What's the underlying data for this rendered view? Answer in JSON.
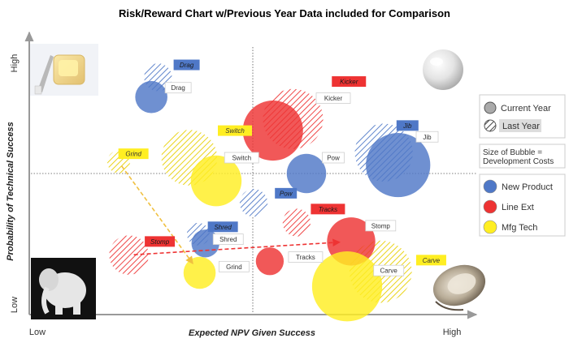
{
  "chart_data": {
    "type": "scatter",
    "subtype": "bubble",
    "title": "Risk/Reward Chart w/Previous Year Data included for Comparison",
    "xlabel": "Expected NPV Given Success",
    "ylabel": "Probability of Technical Success",
    "x_low_label": "Low",
    "x_high_label": "High",
    "y_low_label": "Low",
    "y_high_label": "High",
    "xlim": [
      0,
      100
    ],
    "ylim": [
      0,
      100
    ],
    "reference_lines": {
      "x": 50,
      "y": 50
    },
    "colors": {
      "New Product": "#4f78c7",
      "Line Ext": "#ee3333",
      "Mfg Tech": "#ffee22"
    },
    "legend": {
      "period_items": [
        "Current Year",
        "Last Year"
      ],
      "size_note_line1": "Size of Bubble =",
      "size_note_line2": "Development Costs",
      "category_items": [
        "New Product",
        "Line Ext",
        "Mfg Tech"
      ]
    },
    "points": [
      {
        "name": "Drag",
        "category": "New Product",
        "period": "Last Year",
        "x": 28.8,
        "y": 84.1,
        "size": 3
      },
      {
        "name": "Drag",
        "category": "New Product",
        "period": "Current Year",
        "x": 27.3,
        "y": 77.1,
        "size": 4
      },
      {
        "name": "Kicker",
        "category": "Line Ext",
        "period": "Last Year",
        "x": 59.0,
        "y": 69.3,
        "size": 14
      },
      {
        "name": "Kicker",
        "category": "Line Ext",
        "period": "Current Year",
        "x": 54.5,
        "y": 65.2,
        "size": 14
      },
      {
        "name": "Jib",
        "category": "New Product",
        "period": "Last Year",
        "x": 79.3,
        "y": 57.4,
        "size": 13
      },
      {
        "name": "Jib",
        "category": "New Product",
        "period": "Current Year",
        "x": 82.5,
        "y": 53.0,
        "size": 16
      },
      {
        "name": "Switch",
        "category": "Mfg Tech",
        "period": "Last Year",
        "x": 35.8,
        "y": 55.6,
        "size": 12
      },
      {
        "name": "Switch",
        "category": "Mfg Tech",
        "period": "Current Year",
        "x": 41.8,
        "y": 47.4,
        "size": 10
      },
      {
        "name": "Grind",
        "category": "Mfg Tech",
        "period": "Last Year",
        "x": 20.0,
        "y": 54.1,
        "size": 2
      },
      {
        "name": "Grind",
        "category": "Mfg Tech",
        "period": "Current Year",
        "x": 38.1,
        "y": 14.8,
        "size": 4
      },
      {
        "name": "Pow",
        "category": "New Product",
        "period": "Last Year",
        "x": 50.2,
        "y": 39.6,
        "size": 3
      },
      {
        "name": "Pow",
        "category": "New Product",
        "period": "Current Year",
        "x": 62.0,
        "y": 50.0,
        "size": 6
      },
      {
        "name": "Tracks",
        "category": "Line Ext",
        "period": "Last Year",
        "x": 59.8,
        "y": 32.6,
        "size": 3
      },
      {
        "name": "Tracks",
        "category": "Line Ext",
        "period": "Current Year",
        "x": 53.8,
        "y": 18.9,
        "size": 3
      },
      {
        "name": "Shred",
        "category": "New Product",
        "period": "Last Year",
        "x": 37.8,
        "y": 28.5,
        "size": 2
      },
      {
        "name": "Shred",
        "category": "New Product",
        "period": "Current Year",
        "x": 39.4,
        "y": 25.2,
        "size": 3
      },
      {
        "name": "Stomp",
        "category": "Line Ext",
        "period": "Last Year",
        "x": 22.3,
        "y": 21.1,
        "size": 6
      },
      {
        "name": "Stomp",
        "category": "Line Ext",
        "period": "Current Year",
        "x": 72.0,
        "y": 25.9,
        "size": 9
      },
      {
        "name": "Carve",
        "category": "Mfg Tech",
        "period": "Last Year",
        "x": 78.6,
        "y": 15.2,
        "size": 15
      },
      {
        "name": "Carve",
        "category": "Mfg Tech",
        "period": "Current Year",
        "x": 71.1,
        "y": 10.0,
        "size": 19
      }
    ],
    "arrows": [
      {
        "name": "Grind",
        "category": "Mfg Tech",
        "from": [
          20.0,
          54.1
        ],
        "to": [
          38.1,
          14.8
        ]
      },
      {
        "name": "Stomp",
        "category": "Line Ext",
        "from": [
          22.3,
          21.1
        ],
        "to": [
          72.0,
          25.9
        ]
      }
    ],
    "tags": [
      {
        "text": "Drag",
        "category": "New Product",
        "period": "Last Year",
        "x": 35.2,
        "y": 88.5
      },
      {
        "text": "Drag",
        "category": "New Product",
        "period": "Current Year",
        "x": 33.3,
        "y": 80.4
      },
      {
        "text": "Kicker",
        "category": "Line Ext",
        "period": "Last Year",
        "x": 71.5,
        "y": 82.6
      },
      {
        "text": "Kicker",
        "category": "Line Ext",
        "period": "Current Year",
        "x": 68.0,
        "y": 76.7
      },
      {
        "text": "Jib",
        "category": "New Product",
        "period": "Last Year",
        "x": 84.6,
        "y": 67.0
      },
      {
        "text": "Jib",
        "category": "New Product",
        "period": "Current Year",
        "x": 89.0,
        "y": 63.0
      },
      {
        "text": "Switch",
        "category": "Mfg Tech",
        "period": "Last Year",
        "x": 46.0,
        "y": 65.2
      },
      {
        "text": "Switch",
        "category": "Mfg Tech",
        "period": "Current Year",
        "x": 47.5,
        "y": 55.6
      },
      {
        "text": "Grind",
        "category": "Mfg Tech",
        "period": "Last Year",
        "x": 23.3,
        "y": 57.0
      },
      {
        "text": "Grind",
        "category": "Mfg Tech",
        "period": "Current Year",
        "x": 45.8,
        "y": 17.0
      },
      {
        "text": "Pow",
        "category": "New Product",
        "period": "Last Year",
        "x": 57.4,
        "y": 43.0
      },
      {
        "text": "Pow",
        "category": "New Product",
        "period": "Current Year",
        "x": 68.0,
        "y": 55.6
      },
      {
        "text": "Tracks",
        "category": "Line Ext",
        "period": "Last Year",
        "x": 66.8,
        "y": 37.4
      },
      {
        "text": "Tracks",
        "category": "Line Ext",
        "period": "Current Year",
        "x": 61.8,
        "y": 20.4
      },
      {
        "text": "Shred",
        "category": "New Product",
        "period": "Last Year",
        "x": 43.3,
        "y": 31.1
      },
      {
        "text": "Shred",
        "category": "New Product",
        "period": "Current Year",
        "x": 44.5,
        "y": 26.7
      },
      {
        "text": "Stomp",
        "category": "Line Ext",
        "period": "Last Year",
        "x": 29.2,
        "y": 25.9
      },
      {
        "text": "Stomp",
        "category": "Line Ext",
        "period": "Current Year",
        "x": 78.6,
        "y": 31.5
      },
      {
        "text": "Carve",
        "category": "Mfg Tech",
        "period": "Last Year",
        "x": 89.9,
        "y": 19.3
      },
      {
        "text": "Carve",
        "category": "Mfg Tech",
        "period": "Current Year",
        "x": 80.4,
        "y": 15.6
      }
    ],
    "decorative_images": [
      {
        "corner": "top-left",
        "icon": "butter-toast-icon"
      },
      {
        "corner": "top-right",
        "icon": "pearl-icon"
      },
      {
        "corner": "bottom-left",
        "icon": "white-elephant-icon"
      },
      {
        "corner": "bottom-right",
        "icon": "oyster-icon"
      }
    ]
  }
}
